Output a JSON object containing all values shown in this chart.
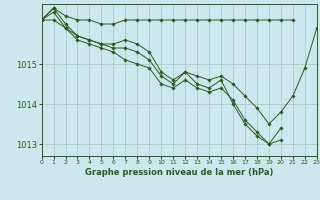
{
  "title": "Graphe pression niveau de la mer (hPa)",
  "bg_color": "#cce8ee",
  "grid_color": "#aacccc",
  "line_color": "#2d5a1b",
  "marker_color": "#2d5a1b",
  "ylim": [
    1012.7,
    1016.5
  ],
  "yticks": [
    1013,
    1014,
    1015
  ],
  "xlim": [
    0,
    23
  ],
  "xticks": [
    0,
    1,
    2,
    3,
    4,
    5,
    6,
    7,
    8,
    9,
    10,
    11,
    12,
    13,
    14,
    15,
    16,
    17,
    18,
    19,
    20,
    21,
    22,
    23
  ],
  "series": [
    {
      "x": [
        0,
        1,
        2,
        3,
        4,
        5,
        6,
        7,
        8,
        9,
        10,
        11,
        12,
        13,
        14,
        15,
        16,
        17,
        18,
        19,
        20,
        21
      ],
      "y": [
        1016.1,
        1016.4,
        1016.2,
        1016.1,
        1016.1,
        1016.0,
        1016.0,
        1016.1,
        1016.1,
        1016.1,
        1016.1,
        1016.1,
        1016.1,
        1016.1,
        1016.1,
        1016.1,
        1016.1,
        1016.1,
        1016.1,
        1016.1,
        1016.1,
        1016.1
      ]
    },
    {
      "x": [
        0,
        1,
        2,
        3,
        4,
        5,
        6,
        7,
        8,
        9,
        10,
        11,
        12,
        13,
        14,
        15,
        16,
        17,
        18,
        19,
        20,
        21,
        22,
        23
      ],
      "y": [
        1016.1,
        1016.3,
        1015.9,
        1015.7,
        1015.6,
        1015.5,
        1015.5,
        1015.6,
        1015.5,
        1015.3,
        1014.8,
        1014.6,
        1014.8,
        1014.7,
        1014.6,
        1014.7,
        1014.5,
        1014.2,
        1013.9,
        1013.5,
        1013.8,
        1014.2,
        1014.9,
        1015.9
      ]
    },
    {
      "x": [
        0,
        1,
        2,
        3,
        4,
        5,
        6,
        7,
        8,
        9,
        10,
        11,
        12,
        13,
        14,
        15,
        16,
        17,
        18,
        19,
        20
      ],
      "y": [
        1016.1,
        1016.4,
        1016.0,
        1015.7,
        1015.6,
        1015.5,
        1015.4,
        1015.4,
        1015.3,
        1015.1,
        1014.7,
        1014.5,
        1014.8,
        1014.5,
        1014.4,
        1014.6,
        1014.0,
        1013.5,
        1013.2,
        1013.0,
        1013.1
      ]
    },
    {
      "x": [
        0,
        1,
        2,
        3,
        4,
        5,
        6,
        7,
        8,
        9,
        10,
        11,
        12,
        13,
        14,
        15,
        16,
        17,
        18,
        19,
        20
      ],
      "y": [
        1016.1,
        1016.1,
        1015.9,
        1015.6,
        1015.5,
        1015.4,
        1015.3,
        1015.1,
        1015.0,
        1014.9,
        1014.5,
        1014.4,
        1014.6,
        1014.4,
        1014.3,
        1014.4,
        1014.1,
        1013.6,
        1013.3,
        1013.0,
        1013.4
      ]
    }
  ]
}
